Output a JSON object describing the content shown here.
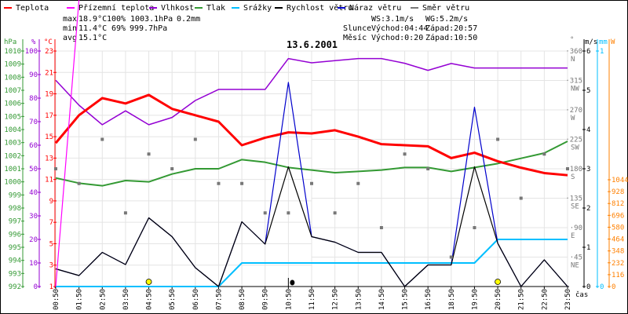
{
  "chart_data": {
    "type": "line",
    "title": "13.6.2001",
    "xlabel": "čas",
    "x": [
      "00:50",
      "01:50",
      "02:50",
      "03:50",
      "04:50",
      "05:50",
      "06:50",
      "07:50",
      "08:50",
      "09:50",
      "10:50",
      "11:50",
      "12:50",
      "13:50",
      "14:50",
      "15:50",
      "16:50",
      "18:50",
      "19:50",
      "20:50",
      "21:50",
      "22:50",
      "23:50"
    ],
    "legend": [
      {
        "name": "Teplota",
        "color": "#ff0000"
      },
      {
        "name": "Přízemní teplota",
        "color": "#ff00ff"
      },
      {
        "name": "Vlhkost",
        "color": "#9400d3"
      },
      {
        "name": "Tlak",
        "color": "#339933"
      },
      {
        "name": "Srážky",
        "color": "#00bfff"
      },
      {
        "name": "Rychlost větru",
        "color": "#000000"
      },
      {
        "name": "Náraz větru",
        "color": "#0000cc"
      },
      {
        "name": "Směr větru",
        "color": "#777777"
      }
    ],
    "series": {
      "temperature": {
        "unit": "°C",
        "values": [
          14.4,
          17.0,
          18.6,
          18.1,
          18.9,
          17.6,
          17.0,
          16.4,
          14.2,
          14.9,
          15.4,
          15.3,
          15.6,
          15.0,
          14.3,
          14.2,
          14.1,
          13.0,
          13.5,
          12.7,
          12.1,
          11.6,
          11.4
        ]
      },
      "ground_temperature": {
        "unit": "°C",
        "values": [
          1.0,
          27.8
        ]
      },
      "humidity": {
        "unit": "%",
        "values": [
          87.6,
          77,
          68.7,
          74.6,
          68.7,
          71.8,
          79,
          83.7,
          83.7,
          83.7,
          96.8,
          95,
          95.9,
          96.8,
          96.8,
          94.8,
          91.8,
          94.7,
          92.8,
          92.8,
          92.8,
          92.8,
          92.8
        ]
      },
      "pressure": {
        "unit": "hPa",
        "values": [
          1000.3,
          999.9,
          999.7,
          1000.1,
          1000.0,
          1000.6,
          1001.0,
          1001.0,
          1001.7,
          1001.5,
          1001.1,
          1000.9,
          1000.7,
          1000.8,
          1000.9,
          1001.1,
          1001.1,
          1000.8,
          1001.1,
          1001.4,
          1001.8,
          1002.2,
          1003.1
        ]
      },
      "precipitation": {
        "unit": "mm",
        "values": [
          0,
          0,
          0,
          0,
          0,
          0,
          0,
          0,
          0.1,
          0.1,
          0.1,
          0.1,
          0.1,
          0.1,
          0.1,
          0.1,
          0.1,
          0.1,
          0.1,
          0.2,
          0.2,
          0.2,
          0.2
        ]
      },
      "wind_speed": {
        "unit": "m/s",
        "values": [
          0.45,
          0.28,
          0.87,
          0.56,
          1.75,
          1.27,
          0.48,
          0,
          1.65,
          1.08,
          3.05,
          1.27,
          1.13,
          0.87,
          0.87,
          0,
          0.55,
          0.55,
          3.05,
          1.1,
          0,
          0.68,
          0
        ]
      },
      "wind_gust": {
        "unit": "m/s",
        "values": [
          0.45,
          0.28,
          0.87,
          0.56,
          1.75,
          1.27,
          0.48,
          0,
          1.65,
          1.08,
          5.2,
          1.27,
          1.13,
          0.87,
          0.87,
          0,
          0.55,
          0.55,
          4.57,
          1.1,
          0,
          0.68,
          0
        ]
      },
      "wind_direction": {
        "unit": "°",
        "values": [
          180,
          157.5,
          225,
          112.5,
          202.5,
          180,
          225,
          157.5,
          157.5,
          112.5,
          112.5,
          157.5,
          112.5,
          157.5,
          90,
          202.5,
          180,
          45,
          90,
          225,
          135,
          202.5,
          180
        ]
      }
    },
    "markers": {
      "sunrise_index": 4,
      "sunset_index": 19,
      "moonset_index": 10
    },
    "axes": {
      "pressure": {
        "label": "hPa",
        "range": [
          992,
          1010
        ],
        "ticks": [
          992,
          993,
          994,
          995,
          996,
          997,
          998,
          999,
          1000,
          1001,
          1002,
          1003,
          1004,
          1005,
          1006,
          1007,
          1008,
          1009,
          1010
        ]
      },
      "humidity": {
        "label": "%",
        "range": [
          0,
          100
        ],
        "ticks": [
          0,
          10,
          20,
          30,
          40,
          50,
          60,
          70,
          80,
          90,
          100
        ]
      },
      "temperature": {
        "label": "°C",
        "range": [
          1,
          23
        ],
        "ticks": [
          1,
          3,
          5,
          7,
          9,
          11,
          13,
          15,
          17,
          19,
          21,
          23
        ]
      },
      "direction": {
        "label": "°",
        "range": [
          0,
          360
        ],
        "ticks": [
          45,
          90,
          135,
          180,
          225,
          270,
          315,
          360
        ],
        "compass": [
          "NE",
          "E",
          "SE",
          "S",
          "SW",
          "W",
          "NW",
          "N"
        ]
      },
      "wind": {
        "label": "m/s",
        "range": [
          0,
          6
        ],
        "ticks": [
          0,
          1,
          2,
          3,
          4,
          5,
          6
        ]
      },
      "rain": {
        "label": "mm",
        "range": [
          0,
          1
        ],
        "ticks": [
          0,
          1
        ]
      },
      "radiation": {
        "label": "W",
        "range": [
          0,
          1044
        ],
        "ticks": [
          0,
          116,
          232,
          348,
          464,
          580,
          696,
          812,
          928,
          1044
        ]
      }
    },
    "grid": true
  },
  "stats": {
    "max_label": "max",
    "min_label": "min",
    "avg_label": "avg",
    "max_temp": "18.9°C",
    "max_hum": "100%",
    "max_press": "1003.1hPa",
    "max_rain": "0.2mm",
    "min_temp": "11.4°C",
    "min_hum": "69%",
    "min_press": "999.7hPa",
    "avg_temp": "15.1°C",
    "ws": "WS:3.1m/s",
    "wg": "WG:5.2m/s",
    "sun_label": "Slunce",
    "sun_rise": "Východ:04:44",
    "sun_set": "Západ:20:57",
    "moon_label": "Měsíc",
    "moon_rise": "Východ:0:20",
    "moon_set": "Západ:10:50"
  },
  "colors": {
    "max": "#ff0000",
    "min": "#0000cc",
    "rain": "#00bfff",
    "radiation": "#ff8000",
    "grid": "#e4e4e4"
  }
}
